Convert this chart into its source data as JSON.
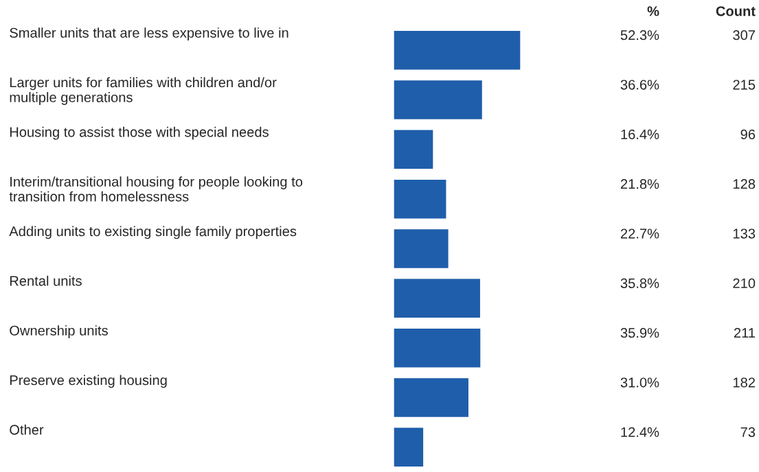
{
  "chart_data": {
    "type": "bar",
    "orientation": "horizontal",
    "categories": [
      "Smaller units that are less expensive to live in",
      "Larger units for families with children and/or\nmultiple generations",
      "Housing to assist those with special needs",
      "Interim/transitional housing for people looking to\ntransition from homelessness",
      "Adding units to existing single family properties",
      "Rental units",
      "Ownership units",
      "Preserve existing housing",
      "Other"
    ],
    "values": [
      52.3,
      36.6,
      16.4,
      21.8,
      22.7,
      35.8,
      35.9,
      31.0,
      12.4
    ],
    "value_labels": [
      "52.3%",
      "36.6%",
      "16.4%",
      "21.8%",
      "22.7%",
      "35.8%",
      "35.9%",
      "31.0%",
      "12.4%"
    ],
    "color": "#1f5eaa",
    "annotations": [
      "%",
      "Count",
      "307",
      "215",
      "96",
      "128",
      "133",
      "210",
      "211",
      "182",
      "73"
    ],
    "grid": false,
    "legend": false
  }
}
